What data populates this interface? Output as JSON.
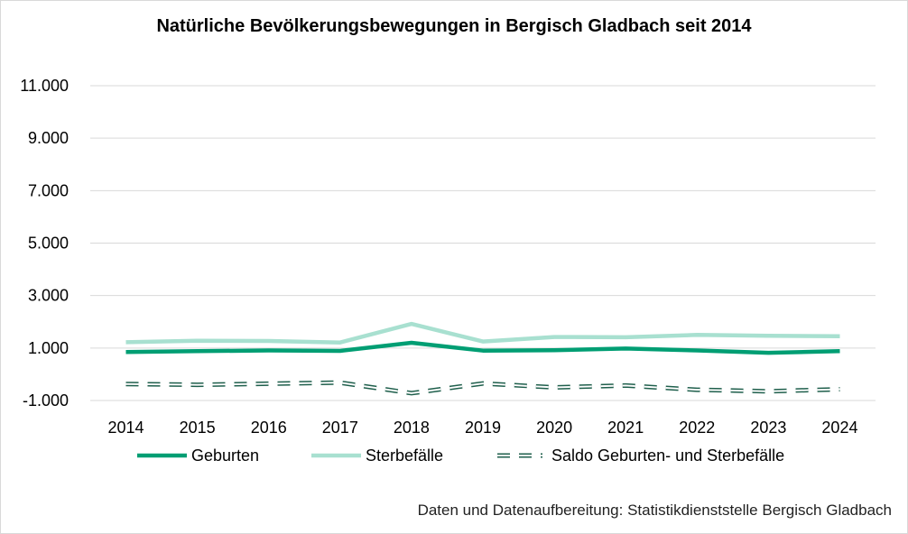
{
  "chart_data": {
    "type": "line",
    "title": "Natürliche Bevölkerungsbewegungen in Bergisch Gladbach seit 2014",
    "categories": [
      "2014",
      "2015",
      "2016",
      "2017",
      "2018",
      "2019",
      "2020",
      "2021",
      "2022",
      "2023",
      "2024"
    ],
    "series": [
      {
        "name": "Geburten",
        "color": "#009e73",
        "style": "solid-thick",
        "values": [
          850,
          880,
          910,
          890,
          1200,
          900,
          920,
          980,
          910,
          820,
          880
        ]
      },
      {
        "name": "Sterbefälle",
        "color": "#a8e0d0",
        "style": "solid-thick",
        "values": [
          1220,
          1280,
          1270,
          1210,
          1920,
          1250,
          1420,
          1410,
          1500,
          1470,
          1450
        ]
      },
      {
        "name": "Saldo Geburten- und Sterbefälle",
        "color": "#1f5f4c",
        "style": "dashed-double",
        "values": [
          -370,
          -400,
          -360,
          -320,
          -720,
          -350,
          -500,
          -430,
          -590,
          -650,
          -570
        ]
      }
    ],
    "yticks": [
      "11.000",
      "9.000",
      "7.000",
      "5.000",
      "3.000",
      "1.000",
      "-1.000"
    ],
    "ytick_values": [
      11000,
      9000,
      7000,
      5000,
      3000,
      1000,
      -1000
    ],
    "ylim": [
      -1000,
      11000
    ],
    "grid": true,
    "legend_position": "bottom",
    "source": "Daten und Datenaufbereitung: Statistikdienststelle Bergisch Gladbach"
  }
}
